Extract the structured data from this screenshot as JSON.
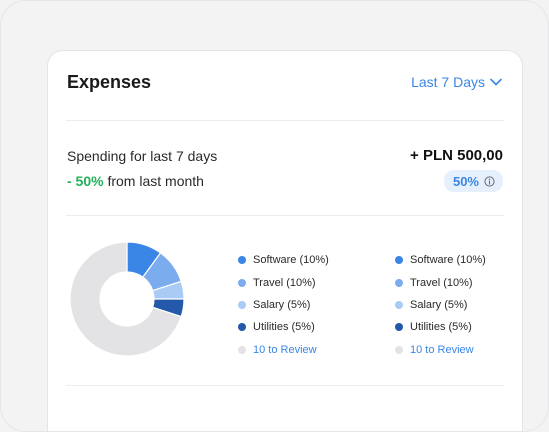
{
  "card": {
    "title": "Expenses",
    "range_label": "Last 7 Days",
    "spending_label": "Spending for last 7 days",
    "spending_amount": "+ PLN 500,00",
    "change_pct": "- 50%",
    "change_text": " from last month",
    "badge_value": "50%"
  },
  "colors": {
    "accent": "#3a86e6",
    "positive": "#22b15a",
    "software": "#3a86e6",
    "travel": "#7aacee",
    "salary": "#a9cbf6",
    "utilities": "#2458a8",
    "review": "#e3e3e5"
  },
  "chart_data": {
    "type": "pie",
    "slices": [
      {
        "label": "Software",
        "value": 10
      },
      {
        "label": "Travel",
        "value": 10
      },
      {
        "label": "Salary",
        "value": 5
      },
      {
        "label": "Utilities",
        "value": 5
      },
      {
        "label": "Review",
        "value": 70
      }
    ]
  },
  "legend_left": [
    {
      "label": "Software (10%)",
      "color_key": "software",
      "is_link": false
    },
    {
      "label": "Travel (10%)",
      "color_key": "travel",
      "is_link": false
    },
    {
      "label": "Salary (5%)",
      "color_key": "salary",
      "is_link": false
    },
    {
      "label": "Utilities (5%)",
      "color_key": "utilities",
      "is_link": false
    },
    {
      "label": "10 to Review",
      "color_key": "review",
      "is_link": true
    }
  ],
  "legend_right": [
    {
      "label": "Software (10%)",
      "color_key": "software",
      "is_link": false
    },
    {
      "label": "Travel (10%)",
      "color_key": "travel",
      "is_link": false
    },
    {
      "label": "Salary (5%)",
      "color_key": "salary",
      "is_link": false
    },
    {
      "label": "Utilities (5%)",
      "color_key": "utilities",
      "is_link": false
    },
    {
      "label": "10 to Review",
      "color_key": "review",
      "is_link": true
    }
  ]
}
